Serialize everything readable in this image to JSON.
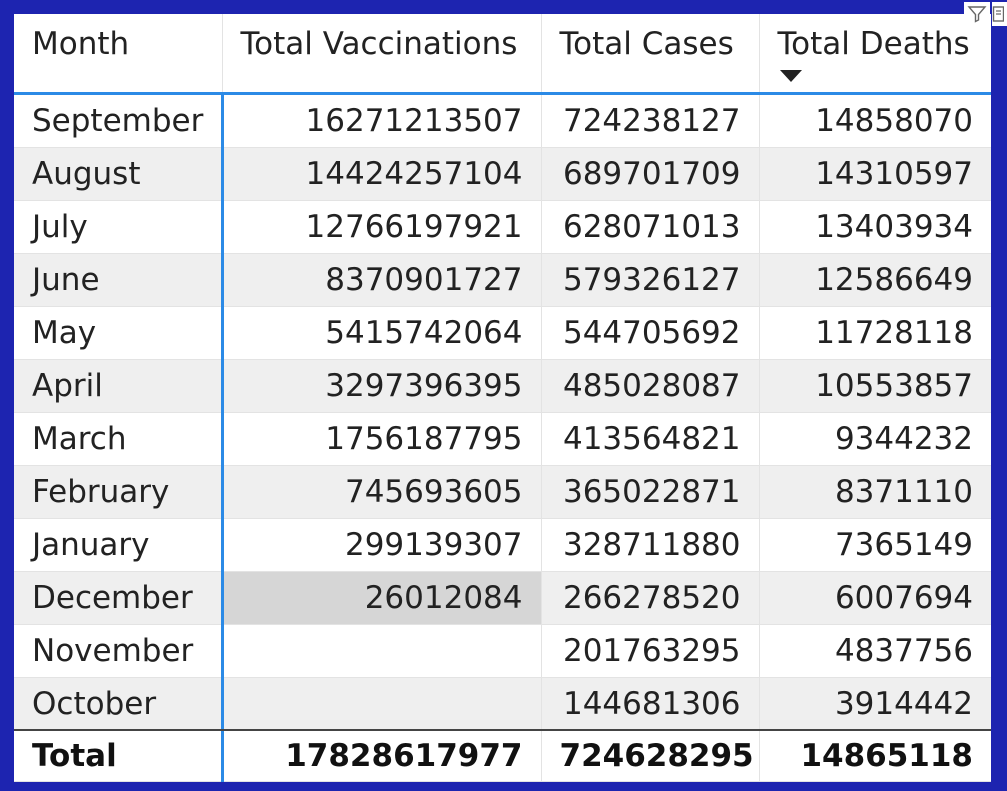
{
  "table": {
    "columns": [
      "Month",
      "Total Vaccinations",
      "Total Cases",
      "Total Deaths"
    ],
    "sorted_column": "Total Deaths",
    "sort_direction": "descending",
    "rows": [
      {
        "month": "September",
        "vaccinations": "16271213507",
        "cases": "724238127",
        "deaths": "14858070"
      },
      {
        "month": "August",
        "vaccinations": "14424257104",
        "cases": "689701709",
        "deaths": "14310597"
      },
      {
        "month": "July",
        "vaccinations": "12766197921",
        "cases": "628071013",
        "deaths": "13403934"
      },
      {
        "month": "June",
        "vaccinations": "8370901727",
        "cases": "579326127",
        "deaths": "12586649"
      },
      {
        "month": "May",
        "vaccinations": "5415742064",
        "cases": "544705692",
        "deaths": "11728118"
      },
      {
        "month": "April",
        "vaccinations": "3297396395",
        "cases": "485028087",
        "deaths": "10553857"
      },
      {
        "month": "March",
        "vaccinations": "1756187795",
        "cases": "413564821",
        "deaths": "9344232"
      },
      {
        "month": "February",
        "vaccinations": "745693605",
        "cases": "365022871",
        "deaths": "8371110"
      },
      {
        "month": "January",
        "vaccinations": "299139307",
        "cases": "328711880",
        "deaths": "7365149"
      },
      {
        "month": "December",
        "vaccinations": "26012084",
        "cases": "266278520",
        "deaths": "6007694"
      },
      {
        "month": "November",
        "vaccinations": "",
        "cases": "201763295",
        "deaths": "4837756"
      },
      {
        "month": "October",
        "vaccinations": "",
        "cases": "144681306",
        "deaths": "3914442"
      }
    ],
    "totals": {
      "label": "Total",
      "vaccinations": "17828617977",
      "cases": "724628295",
      "deaths": "14865118"
    }
  },
  "icons": {
    "filter": "filter-icon",
    "more": "more-options-icon"
  },
  "colors": {
    "frame": "#1d24b0",
    "accent_border": "#2b8ae6",
    "alt_row": "#efefef",
    "highlight_cell": "#d6d6d6"
  }
}
